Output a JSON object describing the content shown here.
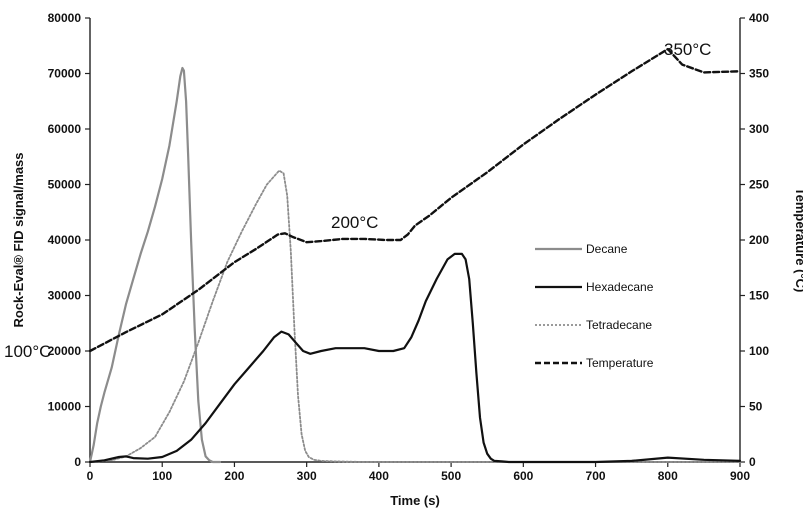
{
  "chart_data": {
    "type": "line",
    "xlabel": "Time (s)",
    "ylabel": "Rock-Eval® FID signal/mass",
    "y2label": "Temperature (°C)",
    "xlim": [
      0,
      900
    ],
    "ylim": [
      0,
      80000
    ],
    "y2lim": [
      0,
      400
    ],
    "xticks": [
      0,
      100,
      200,
      300,
      400,
      500,
      600,
      700,
      800,
      900
    ],
    "yticks": [
      0,
      10000,
      20000,
      30000,
      40000,
      50000,
      60000,
      70000,
      80000
    ],
    "y2ticks": [
      0,
      50,
      100,
      150,
      200,
      250,
      300,
      350,
      400
    ],
    "grid": false,
    "legend_position": "center-right",
    "series": [
      {
        "name": "Decane",
        "axis": "left",
        "color": "#8c8c8c",
        "dash": "solid",
        "x": [
          0,
          5,
          10,
          15,
          20,
          30,
          40,
          50,
          60,
          70,
          80,
          90,
          100,
          110,
          120,
          125,
          128,
          130,
          133,
          136,
          140,
          145,
          150,
          155,
          160,
          165,
          170,
          180
        ],
        "y": [
          0,
          3000,
          7000,
          10000,
          12500,
          17000,
          23000,
          28500,
          33000,
          37500,
          41500,
          46000,
          51000,
          57000,
          65000,
          69500,
          71000,
          70500,
          65000,
          55000,
          40000,
          24000,
          11000,
          4000,
          1000,
          300,
          0,
          0
        ]
      },
      {
        "name": "Hexadecane",
        "axis": "left",
        "color": "#111111",
        "dash": "solid",
        "x": [
          0,
          20,
          40,
          50,
          60,
          80,
          100,
          120,
          140,
          160,
          180,
          200,
          220,
          240,
          255,
          265,
          275,
          285,
          295,
          305,
          320,
          340,
          360,
          380,
          400,
          420,
          435,
          445,
          455,
          465,
          480,
          495,
          505,
          515,
          520,
          525,
          530,
          535,
          540,
          545,
          550,
          555,
          560,
          570,
          580,
          600,
          650,
          700,
          750,
          800,
          850,
          900
        ],
        "y": [
          0,
          300,
          900,
          1000,
          700,
          600,
          900,
          2000,
          4000,
          7000,
          10500,
          14000,
          17000,
          20000,
          22500,
          23500,
          23000,
          21500,
          20000,
          19500,
          20000,
          20500,
          20500,
          20500,
          20000,
          20000,
          20500,
          22500,
          25500,
          29000,
          33000,
          36500,
          37500,
          37500,
          36500,
          33000,
          25000,
          16000,
          8000,
          3500,
          1500,
          600,
          200,
          100,
          0,
          0,
          0,
          0,
          200,
          800,
          400,
          200
        ]
      },
      {
        "name": "Tetradecane",
        "axis": "left",
        "color": "#8c8c8c",
        "dash": "dotted",
        "x": [
          0,
          30,
          50,
          70,
          90,
          110,
          130,
          150,
          170,
          190,
          210,
          230,
          245,
          255,
          262,
          268,
          273,
          278,
          283,
          288,
          293,
          298,
          303,
          310,
          320,
          340,
          380,
          450,
          550,
          650,
          750,
          900
        ],
        "y": [
          0,
          300,
          1000,
          2500,
          4500,
          9000,
          14500,
          21500,
          29000,
          36000,
          41500,
          46500,
          50000,
          51500,
          52500,
          52000,
          48000,
          38000,
          24000,
          12000,
          5000,
          2000,
          900,
          400,
          200,
          100,
          0,
          0,
          0,
          0,
          0,
          0
        ]
      },
      {
        "name": "Temperature",
        "axis": "right",
        "color": "#111111",
        "dash": "dashed",
        "x": [
          0,
          50,
          100,
          150,
          200,
          230,
          260,
          270,
          280,
          300,
          320,
          350,
          380,
          410,
          430,
          440,
          450,
          470,
          500,
          550,
          600,
          650,
          700,
          750,
          790,
          800,
          820,
          850,
          900
        ],
        "y": [
          100,
          117,
          133,
          155,
          180,
          192,
          205,
          206,
          203,
          198,
          199,
          201,
          201,
          200,
          200,
          205,
          213,
          222,
          238,
          261,
          286,
          309,
          331,
          352,
          368,
          372,
          358,
          351,
          352
        ]
      }
    ],
    "annotations": [
      "100°C",
      "200°C",
      "350°C"
    ]
  }
}
